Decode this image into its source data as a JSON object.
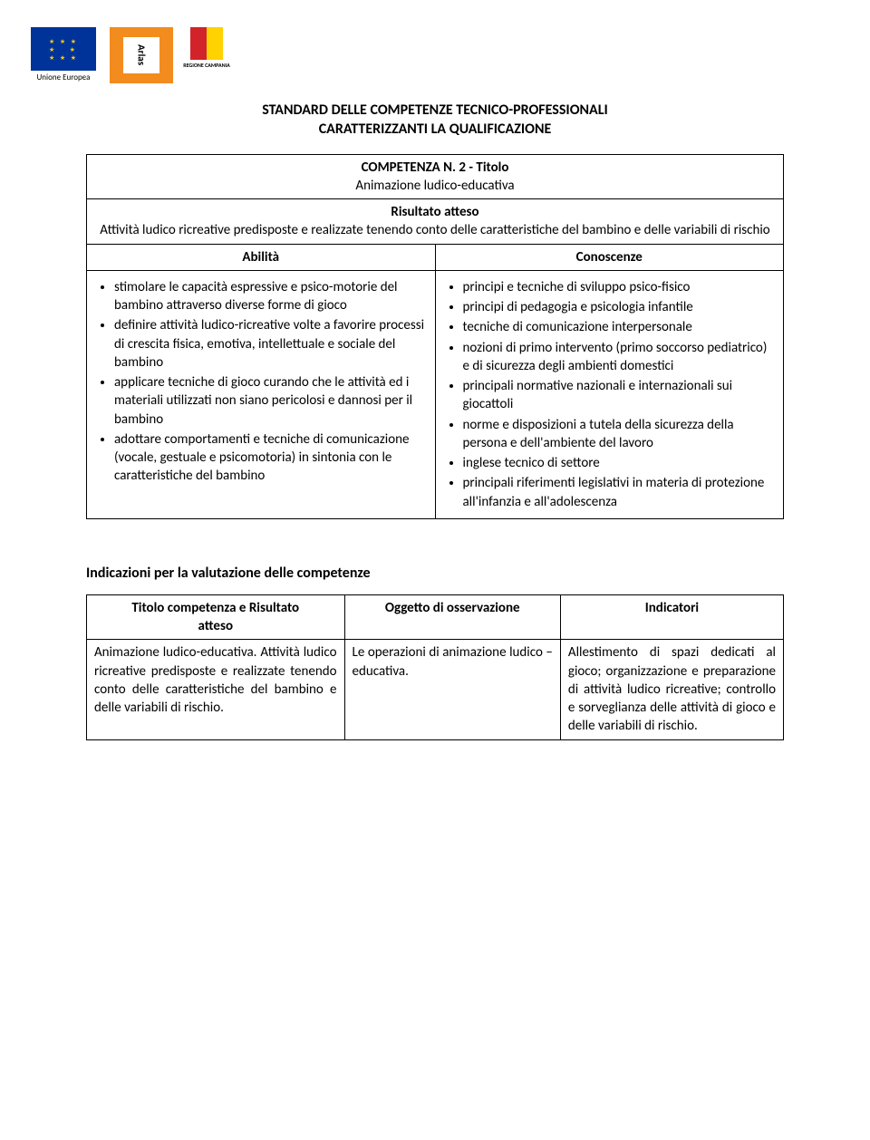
{
  "logos": {
    "eu_label": "Unione Europea",
    "arlas_text": "Arlas",
    "campania_label": "REGIONE CAMPANIA"
  },
  "heading_line1": "STANDARD DELLE COMPETENZE TECNICO-PROFESSIONALI",
  "heading_line2": "CARATTERIZZANTI LA QUALIFICAZIONE",
  "comp_number_label": "COMPETENZA N. 2 - Titolo",
  "comp_title": "Animazione ludico-educativa",
  "risultato_label": "Risultato atteso",
  "risultato_text": "Attività ludico ricreative predisposte e realizzate tenendo conto delle caratteristiche del bambino e delle variabili di rischio",
  "abilita_label": "Abilità",
  "conoscenze_label": "Conoscenze",
  "abilita": [
    "stimolare le capacità espressive e psico-motorie del bambino attraverso diverse forme di gioco",
    "definire attività ludico-ricreative volte a favorire processi di crescita fisica, emotiva, intellettuale e sociale del bambino",
    "applicare tecniche di gioco curando che le attività ed i materiali utilizzati non siano pericolosi e dannosi per il bambino",
    "adottare comportamenti e tecniche di comunicazione (vocale, gestuale e psicomotoria) in sintonia con le caratteristiche del bambino"
  ],
  "conoscenze": [
    "principi e tecniche di sviluppo psico-fisico",
    "principi di pedagogia e psicologia infantile",
    "tecniche di comunicazione interpersonale",
    "nozioni di primo intervento (primo soccorso pediatrico) e di sicurezza degli ambienti domestici",
    "principali normative nazionali e internazionali sui giocattoli",
    "norme e disposizioni a tutela della sicurezza della persona e dell'ambiente del lavoro",
    "inglese tecnico di settore",
    "principali riferimenti legislativi in materia di protezione all'infanzia e all'adolescenza"
  ],
  "indicazioni_title": "Indicazioni per la valutazione delle competenze",
  "indic_headers": {
    "col1_line1": "Titolo competenza e Risultato",
    "col1_line2": "atteso",
    "col2": "Oggetto di osservazione",
    "col3": "Indicatori"
  },
  "indic_row": {
    "col1": "Animazione ludico-educativa. Attività ludico ricreative predisposte e realizzate tenendo conto delle caratteristiche del bambino e delle variabili di rischio.",
    "col2": "Le operazioni di animazione ludico –educativa.",
    "col3": "Allestimento di spazi dedicati al gioco; organizzazione e preparazione di attività ludico ricreative; controllo e sorveglianza delle attività di gioco e delle variabili di rischio."
  }
}
